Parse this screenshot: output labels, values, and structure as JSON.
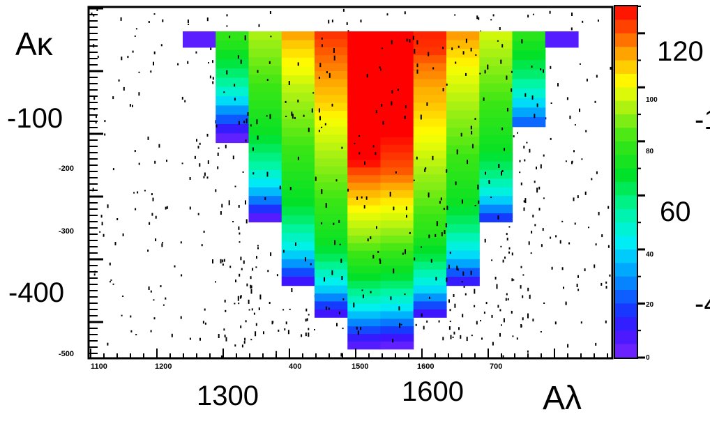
{
  "chart_data": {
    "type": "heatmap",
    "xlabel": "Aλ",
    "ylabel": "Aκ",
    "x_tick_labels": [
      "1100",
      "1200",
      "400",
      "1500",
      "1600",
      "700"
    ],
    "x_big_labels": [
      "1300",
      "1600"
    ],
    "y_tick_labels": [
      "-200",
      "-300",
      "-500"
    ],
    "y_big_labels": [
      "-100",
      "-400"
    ],
    "colorbar": {
      "range": [
        0,
        130
      ],
      "tick_labels": [
        "0",
        "20",
        "40",
        "80",
        "100"
      ],
      "big_labels": [
        "120",
        "60"
      ],
      "edge_labels": [
        "-1",
        "-4"
      ]
    },
    "x_bin_edges": [
      1225,
      1275,
      1325,
      1375,
      1425,
      1475,
      1525,
      1575,
      1625,
      1675,
      1725,
      1775,
      1825
    ],
    "y_bin_width": 25,
    "columns": [
      {
        "x_range": [
          1225,
          1275
        ],
        "y_min": -25,
        "values": [
          5
        ]
      },
      {
        "x_range": [
          1275,
          1325
        ],
        "y_min": -175,
        "values": [
          78,
          75,
          70,
          65,
          60,
          55,
          48,
          40,
          30,
          22,
          12,
          4
        ]
      },
      {
        "x_range": [
          1325,
          1375
        ],
        "y_min": -300,
        "values": [
          92,
          90,
          88,
          86,
          84,
          82,
          80,
          78,
          76,
          74,
          72,
          70,
          66,
          62,
          58,
          54,
          48,
          42,
          35,
          26,
          16,
          6
        ]
      },
      {
        "x_range": [
          1375,
          1425
        ],
        "y_min": -400,
        "values": [
          112,
          108,
          105,
          102,
          100,
          97,
          94,
          92,
          90,
          88,
          86,
          84,
          82,
          80,
          78,
          76,
          74,
          72,
          70,
          68,
          64,
          60,
          55,
          50,
          45,
          38,
          30,
          20,
          10
        ]
      },
      {
        "x_range": [
          1425,
          1475
        ],
        "y_min": -450,
        "values": [
          124,
          122,
          120,
          118,
          116,
          114,
          112,
          110,
          108,
          106,
          103,
          100,
          98,
          96,
          94,
          92,
          90,
          88,
          86,
          84,
          82,
          80,
          78,
          76,
          74,
          72,
          70,
          66,
          62,
          56,
          50,
          44,
          38,
          28,
          18,
          10
        ]
      },
      {
        "x_range": [
          1475,
          1525
        ],
        "y_min": -500,
        "values": [
          130,
          130,
          130,
          130,
          130,
          130,
          130,
          130,
          130,
          130,
          130,
          130,
          130,
          130,
          130,
          130,
          130,
          128,
          122,
          118,
          114,
          110,
          106,
          102,
          98,
          95,
          92,
          88,
          84,
          80,
          76,
          72,
          68,
          62,
          56,
          50,
          44,
          36,
          28,
          20,
          12,
          6
        ]
      },
      {
        "x_range": [
          1525,
          1575
        ],
        "y_min": -500,
        "values": [
          130,
          130,
          130,
          130,
          130,
          130,
          130,
          130,
          130,
          130,
          130,
          130,
          130,
          130,
          128,
          126,
          124,
          122,
          120,
          116,
          112,
          108,
          104,
          100,
          97,
          94,
          90,
          86,
          82,
          78,
          74,
          70,
          66,
          60,
          54,
          48,
          42,
          34,
          26,
          18,
          10,
          4
        ]
      },
      {
        "x_range": [
          1575,
          1625
        ],
        "y_min": -450,
        "values": [
          126,
          125,
          124,
          120,
          117,
          115,
          113,
          111,
          110,
          108,
          106,
          104,
          102,
          100,
          98,
          96,
          94,
          92,
          90,
          88,
          86,
          84,
          82,
          80,
          78,
          76,
          72,
          68,
          64,
          58,
          52,
          46,
          40,
          30,
          20,
          10
        ]
      },
      {
        "x_range": [
          1625,
          1675
        ],
        "y_min": -400,
        "values": [
          113,
          110,
          106,
          103,
          100,
          98,
          96,
          94,
          92,
          90,
          88,
          86,
          84,
          82,
          80,
          78,
          76,
          74,
          72,
          70,
          66,
          62,
          58,
          52,
          46,
          40,
          32,
          22,
          12
        ]
      },
      {
        "x_range": [
          1675,
          1725
        ],
        "y_min": -300,
        "values": [
          96,
          94,
          92,
          90,
          88,
          86,
          84,
          82,
          80,
          78,
          76,
          74,
          72,
          70,
          66,
          62,
          58,
          52,
          46,
          38,
          28,
          18
        ]
      },
      {
        "x_range": [
          1725,
          1775
        ],
        "y_min": -150,
        "values": [
          76,
          72,
          68,
          64,
          60,
          54,
          48,
          40,
          32,
          24
        ]
      },
      {
        "x_range": [
          1775,
          1825
        ],
        "y_min": -25,
        "values": [
          6
        ]
      }
    ]
  }
}
